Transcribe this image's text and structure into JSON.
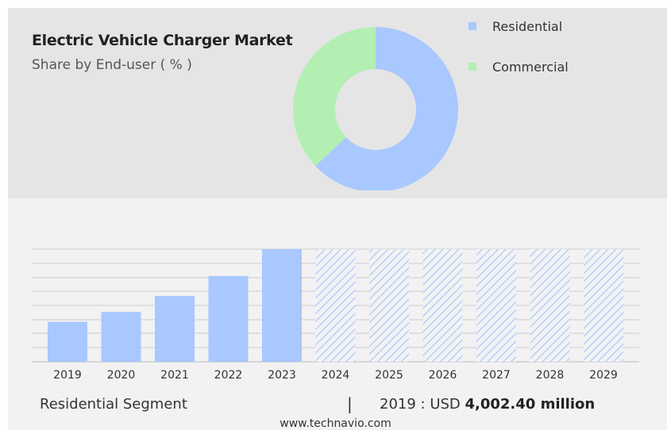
{
  "colors": {
    "residential": "#a8c8ff",
    "commercial": "#b3efb3",
    "hatch": "#a8c8ff",
    "grid": "#cccccc"
  },
  "header": {
    "title": "Electric Vehicle Charger Market",
    "subtitle": "Share by End-user ( % )"
  },
  "legend": [
    {
      "label": "Residential",
      "color": "#a8c8ff"
    },
    {
      "label": "Commercial",
      "color": "#b3efb3"
    }
  ],
  "chart_data": [
    {
      "type": "pie",
      "variant": "donut",
      "labels": [
        "Residential",
        "Commercial"
      ],
      "values": [
        63,
        37
      ]
    },
    {
      "type": "bar",
      "categories": [
        "2019",
        "2020",
        "2021",
        "2022",
        "2023",
        "2024",
        "2025",
        "2026",
        "2027",
        "2028",
        "2029"
      ],
      "values": [
        4002.4,
        5000,
        6600,
        8600,
        11300,
        null,
        null,
        null,
        null,
        null,
        null
      ],
      "forecast_categories": [
        "2024",
        "2025",
        "2026",
        "2027",
        "2028",
        "2029"
      ],
      "forecast_style": "hatched",
      "ylim": [
        0,
        11300
      ],
      "grid": true
    }
  ],
  "footer": {
    "segment_label": "Residential Segment",
    "separator": "|",
    "stat_prefix": "2019 : USD ",
    "stat_value": "4,002.40 million",
    "website": "www.technavio.com"
  }
}
